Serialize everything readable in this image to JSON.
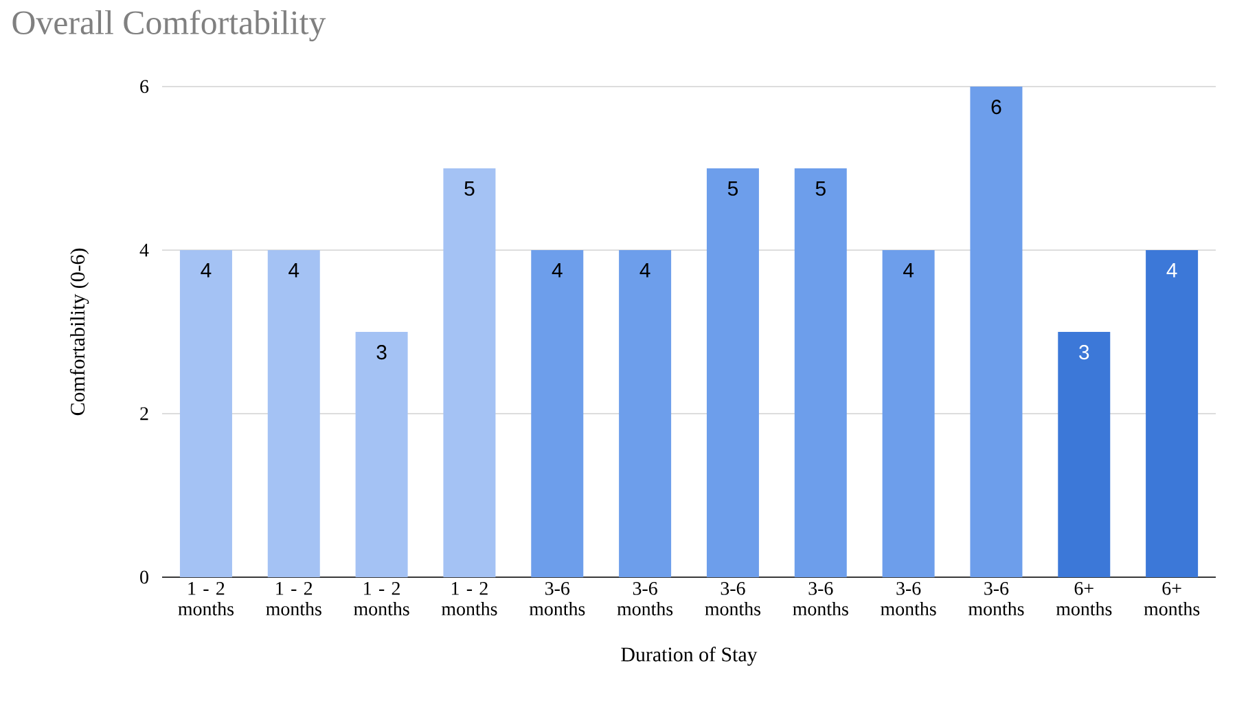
{
  "chart_data": {
    "type": "bar",
    "title": "Overall Comfortability",
    "xlabel": "Duration of Stay",
    "ylabel": "Comfortability (0-6)",
    "categories": [
      "1 - 2 months",
      "1 - 2 months",
      "1 - 2 months",
      "1 - 2 months",
      "3-6 months",
      "3-6 months",
      "3-6 months",
      "3-6 months",
      "3-6 months",
      "3-6 months",
      "6+ months",
      "6+ months"
    ],
    "values": [
      4,
      4,
      3,
      5,
      4,
      4,
      5,
      5,
      4,
      6,
      3,
      4
    ],
    "colors": [
      "#a4c2f4",
      "#a4c2f4",
      "#a4c2f4",
      "#a4c2f4",
      "#6d9eeb",
      "#6d9eeb",
      "#6d9eeb",
      "#6d9eeb",
      "#6d9eeb",
      "#6d9eeb",
      "#3c78d8",
      "#3c78d8"
    ],
    "ylim": [
      0,
      6
    ],
    "yticks": [
      0,
      2,
      4,
      6
    ],
    "grid": "y",
    "data_labels": true
  }
}
